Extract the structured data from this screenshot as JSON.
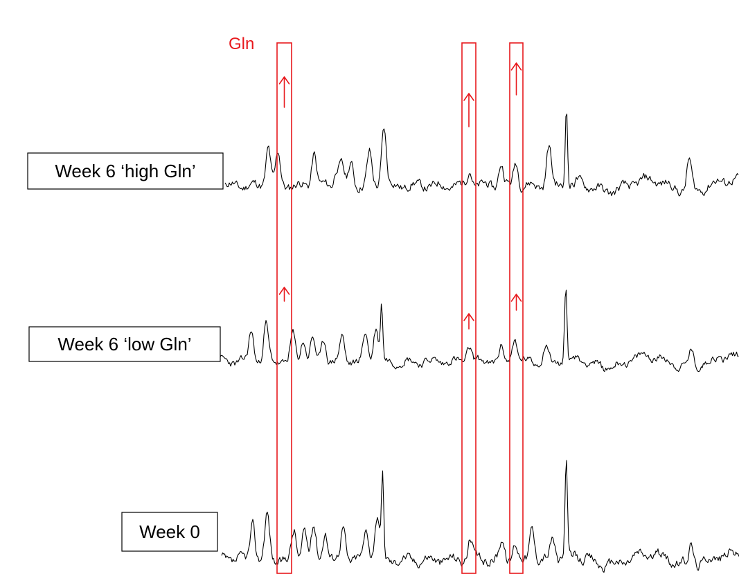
{
  "highlight": {
    "label": "Gln",
    "color": "#e8191d"
  },
  "trace_color": "#000000",
  "chart_data": {
    "type": "line",
    "title": "",
    "xlabel": "",
    "ylabel": "",
    "grid": false,
    "legend": "none",
    "series": [
      {
        "name": "Week 6 ‘high Gln’",
        "peaks": [
          [
            0.084,
            0.4
          ],
          [
            0.103,
            0.32
          ],
          [
            0.173,
            0.34
          ],
          [
            0.217,
            0.18
          ],
          [
            0.227,
            0.2
          ],
          [
            0.245,
            0.23
          ],
          [
            0.281,
            0.32
          ],
          [
            0.309,
            0.6
          ],
          [
            0.476,
            0.17
          ],
          [
            0.537,
            0.22
          ],
          [
            0.566,
            0.25
          ],
          [
            0.63,
            0.4
          ],
          [
            0.664,
            0.85
          ],
          [
            0.903,
            0.21
          ],
          [
            0.903,
            0.1
          ]
        ],
        "highlight_arrows": [
          true,
          true,
          true
        ]
      },
      {
        "name": "Week 6 ‘low Gln’",
        "peaks": [
          [
            0.06,
            0.35
          ],
          [
            0.088,
            0.42
          ],
          [
            0.14,
            0.3
          ],
          [
            0.16,
            0.26
          ],
          [
            0.178,
            0.26
          ],
          [
            0.2,
            0.25
          ],
          [
            0.235,
            0.28
          ],
          [
            0.28,
            0.32
          ],
          [
            0.3,
            0.4
          ],
          [
            0.311,
            0.65
          ],
          [
            0.48,
            0.18
          ],
          [
            0.542,
            0.14
          ],
          [
            0.567,
            0.28
          ],
          [
            0.628,
            0.18
          ],
          [
            0.666,
            0.85
          ],
          [
            0.908,
            0.18
          ]
        ],
        "highlight_arrows": [
          true,
          true,
          true
        ]
      },
      {
        "name": "Week 0",
        "peaks": [
          [
            0.06,
            0.35
          ],
          [
            0.088,
            0.42
          ],
          [
            0.14,
            0.26
          ],
          [
            0.16,
            0.3
          ],
          [
            0.178,
            0.3
          ],
          [
            0.2,
            0.28
          ],
          [
            0.235,
            0.32
          ],
          [
            0.28,
            0.3
          ],
          [
            0.3,
            0.4
          ],
          [
            0.311,
            0.75
          ],
          [
            0.48,
            0.18
          ],
          [
            0.542,
            0.18
          ],
          [
            0.567,
            0.16
          ],
          [
            0.6,
            0.32
          ],
          [
            0.64,
            0.22
          ],
          [
            0.666,
            0.95
          ],
          [
            0.908,
            0.2
          ]
        ],
        "highlight_arrows": [
          false,
          false,
          false
        ]
      }
    ],
    "highlight_regions": 3,
    "annotations": [
      "Gln"
    ]
  }
}
